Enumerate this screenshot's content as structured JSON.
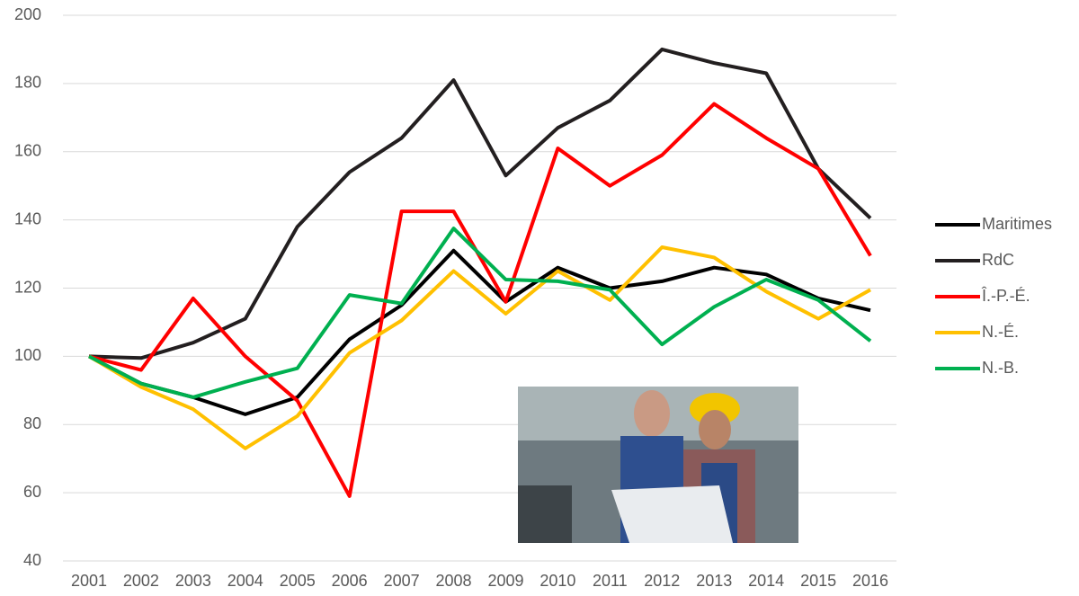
{
  "chart_data": {
    "type": "line",
    "categories": [
      "2001",
      "2002",
      "2003",
      "2004",
      "2005",
      "2006",
      "2007",
      "2008",
      "2009",
      "2010",
      "2011",
      "2012",
      "2013",
      "2014",
      "2015",
      "2016"
    ],
    "series": [
      {
        "name": "Maritimes",
        "color": "#000000",
        "values": [
          100,
          92,
          88,
          83,
          88,
          105,
          115,
          131,
          116,
          126,
          120,
          122,
          126,
          124,
          117,
          113.5
        ]
      },
      {
        "name": "RdC",
        "color": "#231f20",
        "values": [
          100,
          99.5,
          104,
          111,
          138,
          154,
          164,
          181,
          153,
          167,
          175,
          190,
          186,
          183,
          155,
          140.5
        ]
      },
      {
        "name": "Î.-P.-É.",
        "color": "#ff0000",
        "values": [
          100,
          96,
          117,
          100,
          87,
          59,
          142.5,
          142.5,
          116,
          161,
          150,
          159,
          174,
          164,
          155,
          129.5
        ]
      },
      {
        "name": "N.-É.",
        "color": "#ffc000",
        "values": [
          100,
          91,
          84.5,
          73,
          82.5,
          101,
          110.5,
          125,
          112.5,
          125,
          116.5,
          132,
          129,
          119,
          111,
          119.5
        ]
      },
      {
        "name": "N.-B.",
        "color": "#00b050",
        "values": [
          100,
          92,
          88,
          92.5,
          96.5,
          118,
          115.5,
          137.5,
          122.5,
          122,
          119.5,
          103.5,
          114.5,
          122.5,
          116.5,
          104.5
        ]
      }
    ],
    "ylim": [
      40,
      200
    ],
    "yticks": [
      40,
      60,
      80,
      100,
      120,
      140,
      160,
      180,
      200
    ],
    "grid": true,
    "legend": "right"
  }
}
